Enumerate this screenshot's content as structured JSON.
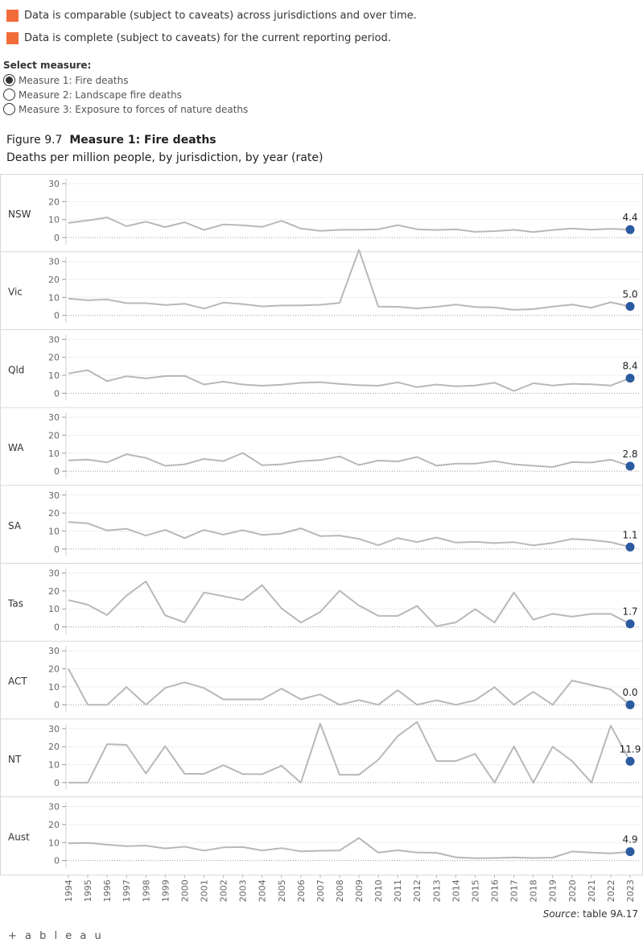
{
  "legend": {
    "comparable": "Data is comparable (subject to caveats) across jurisdictions and over time.",
    "complete": "Data is complete (subject to caveats) for the current reporting period."
  },
  "colors": {
    "legend_swatch": "#f26b3a",
    "line": "#b8b8b8",
    "marker": "#2a5aa0"
  },
  "selector": {
    "label": "Select measure:",
    "options": [
      {
        "label": "Measure 1: Fire deaths",
        "selected": true
      },
      {
        "label": "Measure 2: Landscape fire deaths",
        "selected": false
      },
      {
        "label": "Measure 3: Exposure to forces of nature deaths",
        "selected": false
      }
    ]
  },
  "figure": {
    "number": "Figure 9.7",
    "title": "Measure 1: Fire deaths",
    "subtitle": "Deaths per million people, by jurisdiction, by year (rate)"
  },
  "source": {
    "label": "Source",
    "text": ": table 9A.17"
  },
  "logo": {
    "mark": "+",
    "text": "+ a b l e a u"
  },
  "chart_data": {
    "type": "line",
    "title": "Measure 1: Fire deaths",
    "ylabel": "Deaths per million people",
    "ylim": [
      0,
      35
    ],
    "yticks": [
      0,
      10,
      20,
      30
    ],
    "categories": [
      "1994",
      "1995",
      "1996",
      "1997",
      "1998",
      "1999",
      "2000",
      "2001",
      "2002",
      "2003",
      "2004",
      "2005",
      "2006",
      "2007",
      "2008",
      "2009",
      "2010",
      "2011",
      "2012",
      "2013",
      "2014",
      "2015",
      "2016",
      "2017",
      "2018",
      "2019",
      "2020",
      "2021",
      "2022",
      "2023"
    ],
    "series": [
      {
        "name": "NSW",
        "label": "4.4",
        "values": [
          8.2,
          9.5,
          11.2,
          6.3,
          8.8,
          5.8,
          8.5,
          4.2,
          7.3,
          6.8,
          5.9,
          9.3,
          5.0,
          3.7,
          4.3,
          4.3,
          4.6,
          6.9,
          4.6,
          4.2,
          4.6,
          3.2,
          3.6,
          4.3,
          3.1,
          4.2,
          5.0,
          4.4,
          4.9,
          4.4
        ]
      },
      {
        "name": "Vic",
        "label": "5.0",
        "values": [
          9.4,
          8.4,
          8.9,
          6.8,
          6.8,
          5.8,
          6.5,
          3.8,
          7.1,
          6.3,
          5.0,
          5.5,
          5.6,
          5.9,
          7.0,
          36.5,
          4.9,
          4.8,
          3.9,
          4.8,
          6.0,
          4.7,
          4.5,
          3.1,
          3.5,
          4.9,
          6.0,
          4.3,
          7.3,
          5.0
        ]
      },
      {
        "name": "Qld",
        "label": "8.4",
        "values": [
          11.0,
          12.9,
          6.7,
          9.5,
          8.3,
          9.6,
          9.7,
          4.9,
          6.5,
          4.9,
          4.2,
          4.8,
          5.8,
          6.2,
          5.2,
          4.5,
          4.2,
          6.1,
          3.4,
          4.9,
          3.9,
          4.3,
          5.9,
          1.3,
          5.6,
          4.3,
          5.3,
          5.0,
          4.3,
          8.4
        ]
      },
      {
        "name": "WA",
        "label": "2.8",
        "values": [
          6.0,
          6.4,
          4.9,
          9.4,
          7.4,
          3.0,
          3.8,
          6.8,
          5.6,
          10.1,
          3.3,
          3.8,
          5.5,
          6.2,
          8.2,
          3.4,
          5.9,
          5.4,
          7.9,
          3.1,
          4.2,
          4.2,
          5.6,
          3.8,
          3.0,
          2.3,
          5.0,
          4.8,
          6.4,
          2.8
        ]
      },
      {
        "name": "SA",
        "label": "1.1",
        "values": [
          15.0,
          14.3,
          10.3,
          11.3,
          7.5,
          10.6,
          6.1,
          10.6,
          8.0,
          10.5,
          7.9,
          8.6,
          11.5,
          7.2,
          7.5,
          5.7,
          2.1,
          6.1,
          3.9,
          6.4,
          3.6,
          4.0,
          3.3,
          3.8,
          2.0,
          3.4,
          5.6,
          5.0,
          3.8,
          1.1
        ]
      },
      {
        "name": "Tas",
        "label": "1.7",
        "values": [
          14.9,
          12.3,
          6.6,
          17.4,
          25.3,
          6.4,
          2.5,
          19.1,
          17.1,
          14.9,
          23.2,
          10.3,
          2.4,
          8.3,
          20.1,
          11.9,
          6.2,
          6.1,
          11.7,
          0.4,
          2.5,
          9.9,
          2.4,
          19.1,
          4.0,
          7.3,
          5.7,
          7.2,
          7.2,
          1.7
        ]
      },
      {
        "name": "ACT",
        "label": "0.0",
        "values": [
          20.0,
          0.0,
          0.0,
          9.8,
          0.0,
          9.4,
          12.5,
          9.3,
          3.0,
          3.0,
          3.0,
          9.0,
          3.0,
          5.8,
          0.0,
          2.6,
          0.0,
          8.1,
          0.0,
          2.5,
          0.0,
          2.5,
          9.8,
          0.0,
          7.2,
          0.0,
          13.5,
          11.0,
          8.5,
          0.0
        ]
      },
      {
        "name": "NT",
        "label": "11.9",
        "values": [
          0.0,
          0.0,
          21.4,
          21.0,
          5.1,
          20.3,
          4.9,
          4.9,
          9.7,
          4.8,
          4.7,
          9.4,
          0.0,
          32.8,
          4.4,
          4.4,
          12.7,
          25.9,
          33.7,
          12.0,
          12.0,
          16.0,
          0.0,
          20.1,
          0.0,
          20.0,
          12.0,
          0.0,
          31.7,
          11.9
        ]
      },
      {
        "name": "Aust",
        "label": "4.9",
        "values": [
          9.6,
          9.8,
          8.8,
          8.0,
          8.3,
          6.7,
          7.7,
          5.5,
          7.3,
          7.5,
          5.6,
          6.9,
          5.1,
          5.4,
          5.6,
          12.5,
          4.4,
          5.7,
          4.5,
          4.3,
          1.8,
          1.3,
          1.4,
          1.7,
          1.4,
          1.6,
          5.0,
          4.4,
          4.0,
          4.9
        ]
      }
    ]
  }
}
